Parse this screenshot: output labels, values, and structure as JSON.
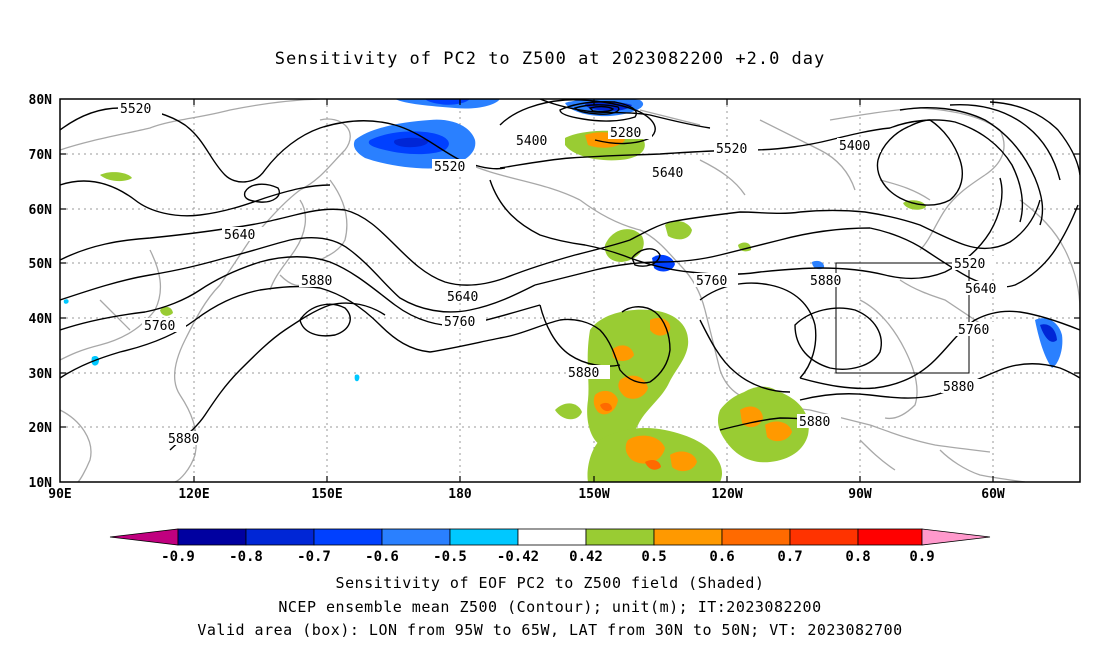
{
  "title": "Sensitivity of PC2 to Z500 at 2023082200 +2.0 day",
  "lat_labels": [
    "80N",
    "70N",
    "60N",
    "50N",
    "40N",
    "30N",
    "20N",
    "10N"
  ],
  "lon_labels": [
    "90E",
    "120E",
    "150E",
    "180",
    "150W",
    "120W",
    "90W",
    "60W"
  ],
  "contour_labels": [
    "5520",
    "5520",
    "5400",
    "5280",
    "5520",
    "5400",
    "5640",
    "5640",
    "5640",
    "5760",
    "5760",
    "5880",
    "5880",
    "5880",
    "5880",
    "5880",
    "5760",
    "5640",
    "5520",
    "5760",
    "5880"
  ],
  "colorbar": {
    "labels": [
      "-0.9",
      "-0.8",
      "-0.7",
      "-0.6",
      "-0.5",
      "-0.42",
      "0.42",
      "0.5",
      "0.6",
      "0.7",
      "0.8",
      "0.9"
    ],
    "colors": [
      "#c0007f",
      "#0000a0",
      "#0026d6",
      "#0040ff",
      "#2a80ff",
      "#00c8ff",
      "#ffffff",
      "#99cc33",
      "#ff9900",
      "#ff6a00",
      "#ff3300",
      "#ff0000",
      "#ff99cc"
    ]
  },
  "captions": [
    "Sensitivity of EOF PC2 to Z500 field (Shaded)",
    "NCEP ensemble mean Z500 (Contour); unit(m); IT:2023082200",
    "Valid area (box): LON from 95W to 65W, LAT from 30N to 50N; VT: 2023082700"
  ]
}
